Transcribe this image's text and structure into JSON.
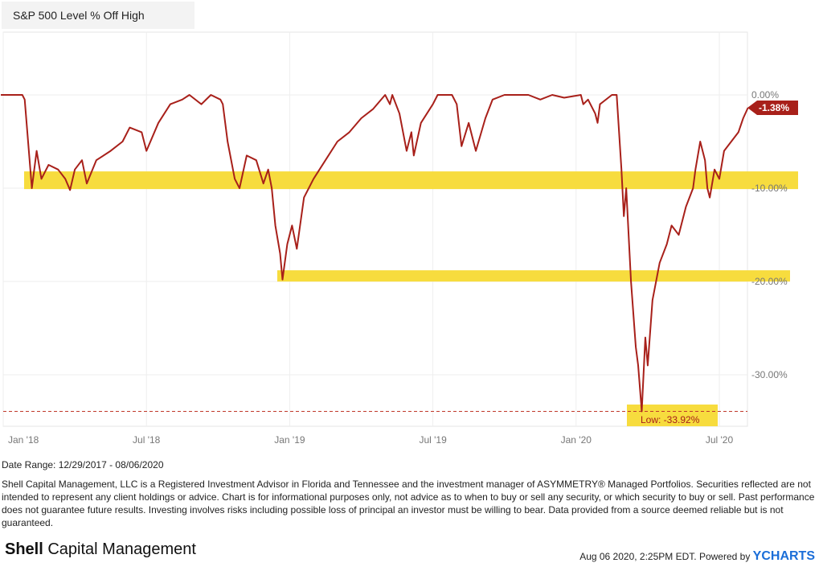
{
  "chart_data": {
    "type": "line",
    "title": "S&P 500 Level % Off High",
    "x_ticks": [
      "Jan '18",
      "Jul '18",
      "Jan '19",
      "Jul '19",
      "Jan '20",
      "Jul '20"
    ],
    "y_ticks": [
      "0.00%",
      "-10.00%",
      "-20.00%",
      "-30.00%"
    ],
    "ylim": [
      -35,
      0
    ],
    "x_units": "months since Jan 2018",
    "series": [
      {
        "name": "S&P 500 Level % Off High",
        "color": "#a8201a",
        "points": [
          [
            -0.1,
            0
          ],
          [
            0.8,
            0
          ],
          [
            0.9,
            -0.5
          ],
          [
            1.2,
            -10
          ],
          [
            1.4,
            -6
          ],
          [
            1.6,
            -9
          ],
          [
            1.9,
            -7.5
          ],
          [
            2.3,
            -8
          ],
          [
            2.6,
            -9
          ],
          [
            2.8,
            -10.2
          ],
          [
            3.0,
            -8
          ],
          [
            3.3,
            -7
          ],
          [
            3.5,
            -9.5
          ],
          [
            3.9,
            -7
          ],
          [
            4.5,
            -6
          ],
          [
            5.0,
            -5
          ],
          [
            5.3,
            -3.5
          ],
          [
            5.8,
            -4
          ],
          [
            6.0,
            -6
          ],
          [
            6.5,
            -3
          ],
          [
            7.0,
            -1
          ],
          [
            7.5,
            -0.5
          ],
          [
            7.8,
            0
          ],
          [
            8.3,
            -1
          ],
          [
            8.7,
            0
          ],
          [
            9.1,
            -0.5
          ],
          [
            9.2,
            -1
          ],
          [
            9.4,
            -5
          ],
          [
            9.7,
            -9
          ],
          [
            9.9,
            -10
          ],
          [
            10.2,
            -6.5
          ],
          [
            10.6,
            -7
          ],
          [
            10.9,
            -9.5
          ],
          [
            11.1,
            -8
          ],
          [
            11.25,
            -10
          ],
          [
            11.4,
            -14
          ],
          [
            11.6,
            -17
          ],
          [
            11.7,
            -19.8
          ],
          [
            11.9,
            -16
          ],
          [
            12.1,
            -14
          ],
          [
            12.3,
            -16.5
          ],
          [
            12.6,
            -11
          ],
          [
            13.0,
            -9
          ],
          [
            13.5,
            -7
          ],
          [
            14.0,
            -5
          ],
          [
            14.5,
            -4
          ],
          [
            15.0,
            -2.5
          ],
          [
            15.5,
            -1.5
          ],
          [
            16.0,
            0
          ],
          [
            16.2,
            -1
          ],
          [
            16.3,
            0
          ],
          [
            16.6,
            -2
          ],
          [
            16.9,
            -6
          ],
          [
            17.1,
            -4
          ],
          [
            17.2,
            -6.5
          ],
          [
            17.5,
            -3
          ],
          [
            18.0,
            -1
          ],
          [
            18.2,
            0
          ],
          [
            18.8,
            0
          ],
          [
            19.0,
            -1
          ],
          [
            19.2,
            -5.5
          ],
          [
            19.5,
            -3
          ],
          [
            19.8,
            -6
          ],
          [
            20.2,
            -2.5
          ],
          [
            20.5,
            -0.5
          ],
          [
            21.0,
            0
          ],
          [
            22.0,
            0
          ],
          [
            22.5,
            -0.5
          ],
          [
            23.0,
            0
          ],
          [
            23.5,
            -0.3
          ],
          [
            24.2,
            0
          ],
          [
            24.3,
            -1
          ],
          [
            24.5,
            -0.5
          ],
          [
            24.8,
            -2
          ],
          [
            24.9,
            -3
          ],
          [
            25.0,
            -1
          ],
          [
            25.5,
            0
          ],
          [
            25.7,
            0
          ],
          [
            25.9,
            -8
          ],
          [
            26.0,
            -13
          ],
          [
            26.1,
            -10
          ],
          [
            26.3,
            -20
          ],
          [
            26.5,
            -27
          ],
          [
            26.6,
            -29
          ],
          [
            26.75,
            -33.92
          ],
          [
            26.9,
            -26
          ],
          [
            27.0,
            -29
          ],
          [
            27.2,
            -22
          ],
          [
            27.5,
            -18
          ],
          [
            27.8,
            -16
          ],
          [
            28.0,
            -14
          ],
          [
            28.3,
            -15
          ],
          [
            28.6,
            -12
          ],
          [
            28.9,
            -10
          ],
          [
            29.0,
            -8
          ],
          [
            29.2,
            -5
          ],
          [
            29.4,
            -7
          ],
          [
            29.5,
            -10
          ],
          [
            29.6,
            -11
          ],
          [
            29.8,
            -8
          ],
          [
            30.0,
            -9
          ],
          [
            30.2,
            -6
          ],
          [
            30.5,
            -5
          ],
          [
            30.8,
            -4
          ],
          [
            31.0,
            -2.5
          ],
          [
            31.2,
            -1.38
          ]
        ]
      }
    ],
    "annotations": {
      "last_value": "-1.38%",
      "low_label": "Low: -33.92%",
      "low_value": -33.92,
      "highlight_levels": [
        -10,
        -20
      ]
    }
  },
  "date_range": "Date Range: 12/29/2017 - 08/06/2020",
  "disclaimer": "Shell Capital Management, LLC is a Registered Investment Advisor in Florida and Tennessee and the investment manager of ASYMMETRY® Managed Portfolios. Securities reflected are not intended to represent any client holdings or advice. Chart is for informational purposes only, not advice as to when to buy or sell any security, or which security to buy or sell. Past performance does not guarantee future results. Investing involves risks including possible loss of principal an investor must be willing to bear. Data provided from a source deemed reliable but is not guaranteed.",
  "logo": {
    "bold": "Shell",
    "rest": " Capital Management"
  },
  "footer": {
    "text": "Aug 06 2020, 2:25PM EDT. Powered by ",
    "brand": "YCHARTS"
  }
}
